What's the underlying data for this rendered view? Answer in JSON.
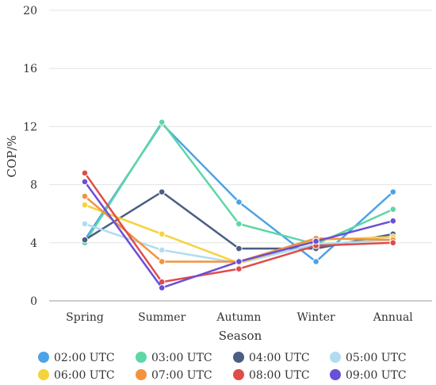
{
  "chart_data": {
    "type": "line",
    "title": "",
    "xlabel": "Season",
    "ylabel": "COP/%",
    "categories": [
      "Spring",
      "Summer",
      "Autumn",
      "Winter",
      "Annual"
    ],
    "ylim": [
      0,
      20
    ],
    "yticks": [
      "0",
      "4",
      "8",
      "12",
      "16",
      "20"
    ],
    "grid": "horizontal",
    "legend_position": "bottom",
    "series": [
      {
        "name": "02:00 UTC",
        "color": "#4da3e6",
        "values": [
          4.2,
          12.2,
          6.8,
          2.7,
          7.5
        ]
      },
      {
        "name": "03:00 UTC",
        "color": "#5ed6a6",
        "values": [
          4.0,
          12.3,
          5.3,
          3.9,
          6.3
        ]
      },
      {
        "name": "04:00 UTC",
        "color": "#4b5e84",
        "values": [
          4.2,
          7.5,
          3.6,
          3.6,
          4.6
        ]
      },
      {
        "name": "05:00 UTC",
        "color": "#b0dcf0",
        "values": [
          5.3,
          3.5,
          2.6,
          3.9,
          4.2
        ]
      },
      {
        "name": "06:00 UTC",
        "color": "#f6d23d",
        "values": [
          6.6,
          4.6,
          2.6,
          4.2,
          4.4
        ]
      },
      {
        "name": "07:00 UTC",
        "color": "#f4933e",
        "values": [
          7.2,
          2.7,
          2.7,
          4.3,
          4.2
        ]
      },
      {
        "name": "08:00 UTC",
        "color": "#de4d4a",
        "values": [
          8.8,
          1.3,
          2.2,
          3.8,
          4.0
        ]
      },
      {
        "name": "09:00 UTC",
        "color": "#6a4fd8",
        "values": [
          8.2,
          0.9,
          2.7,
          4.1,
          5.5
        ]
      }
    ]
  }
}
